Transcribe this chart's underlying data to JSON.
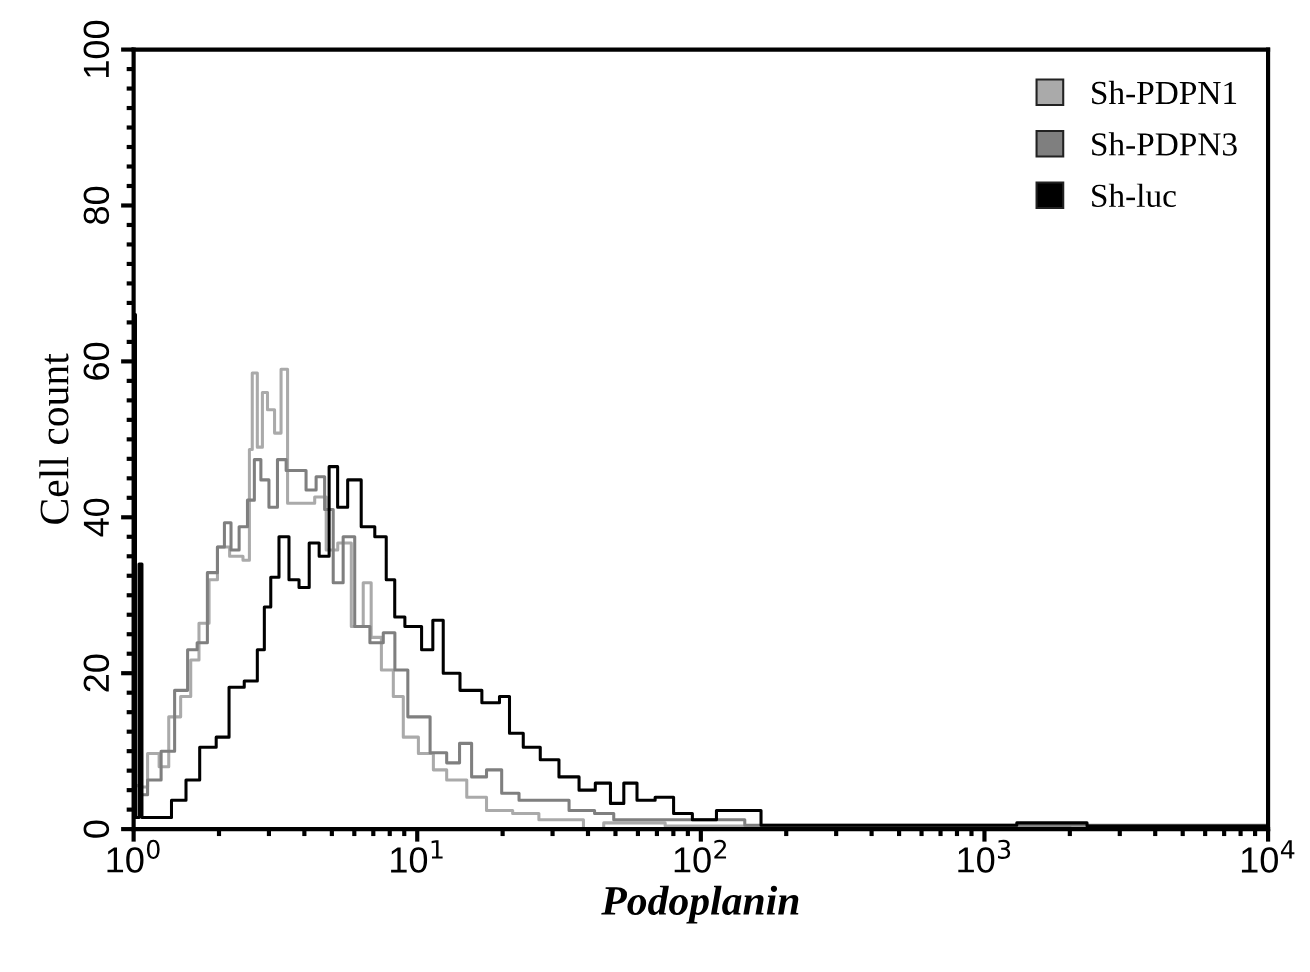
{
  "chart_data": {
    "type": "step",
    "xlabel": "Podoplanin",
    "ylabel": "Cell count",
    "log": "x",
    "xlim": [
      1,
      10000
    ],
    "xticks": [
      {
        "value": 1,
        "label": "10$^{0}$"
      },
      {
        "value": 10,
        "label": "10$^{1}$"
      },
      {
        "value": 100,
        "label": "10$^{2}$"
      },
      {
        "value": 1000,
        "label": "10$^{3}$"
      },
      {
        "value": 10000,
        "label": "10$^{4}$"
      }
    ],
    "ylim": [
      0,
      100
    ],
    "yticks": [
      0,
      20,
      40,
      60,
      80,
      100
    ],
    "grid": false,
    "legend": "top right",
    "series": [
      {
        "name": "Sh-PDPN1",
        "color": "#aaaaaa",
        "x": [
          1.0,
          1.03,
          1.06,
          1.18,
          1.28,
          1.38,
          1.55,
          1.63,
          1.77,
          1.92,
          2.03,
          2.33,
          2.53,
          2.59,
          2.65,
          2.81,
          2.88,
          3.05,
          3.23,
          3.39,
          3.59,
          4.12,
          4.58,
          4.97,
          5.52,
          6.19,
          6.71,
          7.05,
          7.9,
          8.57,
          9.29,
          10.9,
          11.9,
          13.5,
          16.4,
          18.7,
          24.7,
          29.0,
          35.9,
          41.2,
          49.7,
          100,
          300,
          1000,
          2000
        ],
        "values": [
          54,
          5.6,
          5.4,
          9.7,
          8,
          14.4,
          17,
          21.7,
          26.4,
          32,
          36.2,
          35,
          34.5,
          48.7,
          58.5,
          49,
          56,
          53.8,
          50.8,
          59,
          41.8,
          41.8,
          42.6,
          35.8,
          36.7,
          26,
          31.6,
          24.6,
          20.4,
          17,
          11.8,
          9.7,
          7.6,
          6.3,
          4.1,
          2.4,
          2,
          1.2,
          1.2,
          0,
          0.8,
          0.4,
          0.4,
          0.4,
          0.4
        ]
      },
      {
        "name": "Sh-PDPN3",
        "color": "#7f7f7f",
        "x": [
          1.06,
          1.18,
          1.32,
          1.47,
          1.63,
          1.72,
          1.92,
          2.03,
          2.15,
          2.26,
          2.45,
          2.59,
          2.74,
          2.88,
          3.12,
          3.31,
          3.59,
          3.89,
          4.22,
          4.58,
          4.85,
          5.26,
          5.7,
          6.34,
          7.28,
          7.9,
          8.78,
          9.75,
          10.3,
          11.9,
          13.5,
          14.7,
          16.4,
          18.7,
          21.0,
          24.7,
          31.5,
          37.1,
          47.3,
          51.3,
          85.7,
          200,
          1000,
          10000
        ],
        "values": [
          4.4,
          6.3,
          10,
          17.8,
          23,
          23.9,
          32.9,
          36.2,
          39.3,
          35.8,
          38.8,
          42.2,
          47.4,
          44.8,
          41.3,
          47.4,
          46,
          46,
          43.5,
          45.2,
          41,
          31.6,
          37.5,
          26,
          23.9,
          25.2,
          20.4,
          14.4,
          14.4,
          9.8,
          8.5,
          11,
          6.7,
          7.6,
          4.6,
          3.7,
          3.7,
          2.4,
          2,
          1.2,
          1.2,
          0.5,
          0.5,
          0.5
        ]
      },
      {
        "name": "Sh-luc",
        "color": "#000000",
        "x": [
          1.0,
          1.03,
          1.06,
          1.08,
          1.25,
          1.47,
          1.59,
          1.83,
          2.08,
          2.26,
          2.65,
          2.81,
          2.97,
          3.12,
          3.39,
          3.67,
          3.99,
          4.33,
          4.69,
          5.09,
          5.39,
          5.98,
          6.71,
          7.46,
          8.09,
          8.57,
          9.52,
          11.2,
          11.5,
          13.2,
          15.1,
          18.7,
          20.3,
          22.0,
          25.3,
          29.0,
          34.2,
          40.2,
          44.7,
          51.3,
          55.7,
          63.4,
          74.6,
          85.7,
          101,
          126,
          200,
          500,
          1000,
          1600,
          3000,
          10000
        ],
        "values": [
          66,
          1.5,
          34,
          1.5,
          1.5,
          3.7,
          6.3,
          10.5,
          11.8,
          18.2,
          19,
          23,
          28.5,
          32.3,
          37.5,
          32,
          31,
          36.7,
          35,
          46.5,
          41.3,
          44.8,
          38.8,
          37.5,
          32,
          27.2,
          26,
          23,
          26.8,
          20,
          17.8,
          16.2,
          17,
          12.3,
          10.5,
          8.9,
          6.7,
          5,
          5.9,
          3.3,
          5.9,
          3.7,
          4.1,
          2,
          1.2,
          2.4,
          0.5,
          0.5,
          0.5,
          0.8,
          0.4,
          0.4
        ]
      }
    ]
  }
}
